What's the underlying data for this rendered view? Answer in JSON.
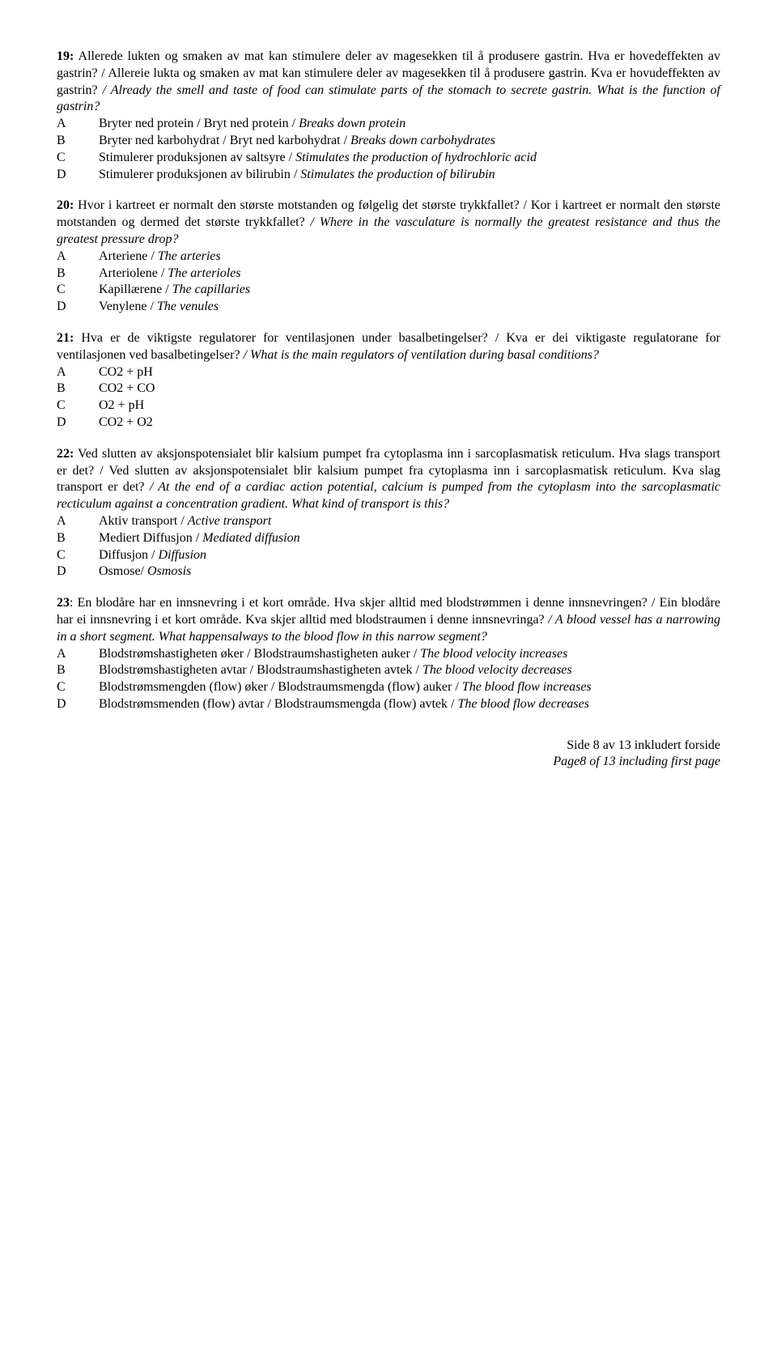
{
  "questions": [
    {
      "num": "19:",
      "text_nb": " Allerede lukten og smaken av mat kan stimulere deler av magesekken til å produsere gastrin. Hva er hovedeffekten av gastrin? / Allereie lukta og smaken av mat kan stimulere deler av magesekken til å produsere gastrin. Kva er hovudeffekten av gastrin? ",
      "text_en": "/ Already the smell and taste of food can stimulate parts of the stomach to secrete gastrin. What is the function of gastrin?",
      "options": [
        {
          "letter": "A",
          "nb": "Bryter ned protein / Bryt ned protein / ",
          "en": "Breaks down protein"
        },
        {
          "letter": "B",
          "nb": "Bryter ned karbohydrat / Bryt ned karbohydrat / ",
          "en": "Breaks down carbohydrates"
        },
        {
          "letter": "C",
          "nb": "Stimulerer produksjonen av saltsyre / ",
          "en": "Stimulates the production of hydrochloric acid"
        },
        {
          "letter": "D",
          "nb": "Stimulerer produksjonen av bilirubin / ",
          "en": "Stimulates the production of bilirubin"
        }
      ]
    },
    {
      "num": "20:",
      "text_nb": " Hvor i kartreet er normalt den største motstanden og følgelig det største trykkfallet? / Kor i kartreet er normalt den største motstanden og dermed det største trykkfallet? ",
      "text_en": "/ Where in the vasculature is normally the greatest resistance and thus the greatest pressure drop?",
      "options": [
        {
          "letter": "A",
          "nb": "Arteriene / ",
          "en": "The arteries"
        },
        {
          "letter": "B",
          "nb": "Arteriolene / ",
          "en": "The arterioles"
        },
        {
          "letter": "C",
          "nb": "Kapillærene / ",
          "en": "The capillaries"
        },
        {
          "letter": "D",
          "nb": "Venylene / ",
          "en": "The venules"
        }
      ]
    },
    {
      "num": "21:",
      "text_nb": " Hva er de viktigste regulatorer for ventilasjonen under basalbetingelser? / Kva er dei viktigaste regulatorane for ventilasjonen ved basalbetingelser? ",
      "text_en": "/ What is the main regulators of ventilation during basal conditions?",
      "options": [
        {
          "letter": "A",
          "nb": "CO2 + pH",
          "en": ""
        },
        {
          "letter": "B",
          "nb": "CO2 + CO",
          "en": ""
        },
        {
          "letter": "C",
          "nb": "O2 + pH",
          "en": ""
        },
        {
          "letter": "D",
          "nb": "CO2 + O2",
          "en": ""
        }
      ]
    },
    {
      "num": "22:",
      "text_nb": " Ved slutten av aksjonspotensialet blir kalsium pumpet fra cytoplasma inn i sarcoplasmatisk reticulum. Hva slags transport er det? / Ved slutten av aksjonspotensialet blir kalsium pumpet fra cytoplasma inn i sarcoplasmatisk reticulum. Kva slag transport er det? ",
      "text_en": "/ At the end of a cardiac action potential, calcium is pumped from the cytoplasm into the sarcoplasmatic recticulum against a concentration gradient. What kind of transport is this?",
      "options": [
        {
          "letter": "A",
          "nb": "Aktiv transport / ",
          "en": "Active transport"
        },
        {
          "letter": "B",
          "nb": " Mediert Diffusjon / ",
          "en": "Mediated diffusion"
        },
        {
          "letter": "C",
          "nb": " Diffusjon / ",
          "en": "Diffusion"
        },
        {
          "letter": "D",
          "nb": " Osmose/ ",
          "en": "Osmosis"
        }
      ]
    },
    {
      "num": "23",
      "text_nb": ": En blodåre har en innsnevring i et kort område. Hva skjer alltid med blodstrømmen i denne innsnevringen? / Ein blodåre har ei innsnevring i et kort område. Kva skjer alltid med blodstraumen i denne innsnevringa? ",
      "text_en": "/ A blood vessel has a narrowing in a short segment. What happensalways to the blood flow in this narrow segment?",
      "options": [
        {
          "letter": "A",
          "nb": "Blodstrømshastigheten øker / Blodstraumshastigheten auker / ",
          "en": "The blood velocity increases"
        },
        {
          "letter": "B",
          "nb": "Blodstrømshastigheten avtar / Blodstraumshastigheten avtek / ",
          "en": "The blood velocity decreases"
        },
        {
          "letter": "C",
          "nb": "Blodstrømsmengden (flow) øker / Blodstraumsmengda (flow) auker / ",
          "en": "The blood flow increases"
        },
        {
          "letter": "D",
          "nb": "Blodstrømsmenden (flow) avtar / Blodstraumsmengda (flow) avtek / ",
          "en": "The blood flow decreases"
        }
      ]
    }
  ],
  "footer": {
    "nb": "Side 8 av 13 inkludert forside",
    "en": "Page8 of 13 including first page"
  }
}
